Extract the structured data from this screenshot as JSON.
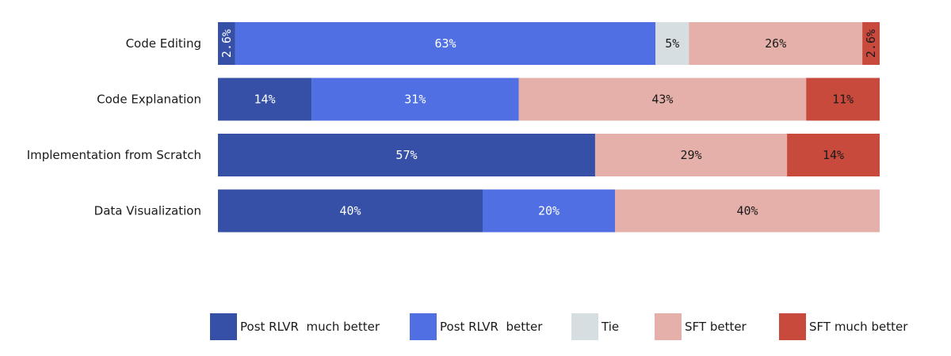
{
  "chart_data": {
    "type": "bar",
    "orientation": "horizontal",
    "stacked": true,
    "normalized": true,
    "categories": [
      "Code Editing",
      "Code Explanation",
      "Implementation from Scratch",
      "Data Visualization"
    ],
    "series": [
      {
        "name": "Post RLVR  much better",
        "color": "#3550a6",
        "values": [
          2.6,
          14,
          57,
          40
        ],
        "labels": [
          "2.6%",
          "14%",
          "57%",
          "40%"
        ]
      },
      {
        "name": "Post RLVR  better",
        "color": "#4f6fe3",
        "values": [
          63,
          31,
          0,
          20
        ],
        "labels": [
          "63%",
          "31%",
          "",
          "20%"
        ]
      },
      {
        "name": "Tie",
        "color": "#d7dee1",
        "values": [
          5,
          0,
          0,
          0
        ],
        "labels": [
          "5%",
          "",
          "",
          ""
        ]
      },
      {
        "name": "SFT better",
        "color": "#e5b0a9",
        "values": [
          26,
          43,
          29,
          40
        ],
        "labels": [
          "26%",
          "43%",
          "29%",
          "40%"
        ]
      },
      {
        "name": "SFT much better",
        "color": "#c84a3d",
        "values": [
          2.6,
          11,
          14,
          0
        ],
        "labels": [
          "2.6%",
          "11%",
          "14%",
          ""
        ]
      }
    ],
    "xlim": [
      0,
      100
    ],
    "grid": false,
    "legend_position": "bottom"
  }
}
